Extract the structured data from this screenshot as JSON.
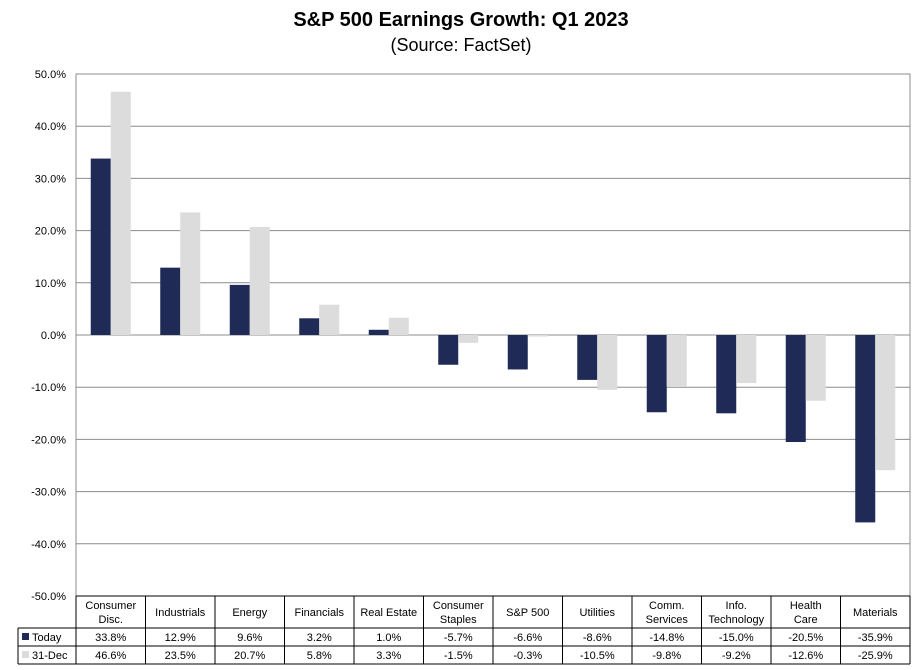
{
  "chart_data": {
    "type": "bar",
    "title": "S&P 500 Earnings Growth: Q1 2023",
    "subtitle": "(Source: FactSet)",
    "categories": [
      [
        "Consumer",
        "Disc."
      ],
      [
        "Industrials"
      ],
      [
        "Energy"
      ],
      [
        "Financials"
      ],
      [
        "Real Estate"
      ],
      [
        "Consumer",
        "Staples"
      ],
      [
        "S&P 500"
      ],
      [
        "Utilities"
      ],
      [
        "Comm.",
        "Services"
      ],
      [
        "Info.",
        "Technology"
      ],
      [
        "Health",
        "Care"
      ],
      [
        "Materials"
      ]
    ],
    "series": [
      {
        "name": "Today",
        "color": "#1f2a57",
        "values": [
          33.8,
          12.9,
          9.6,
          3.2,
          1.0,
          -5.7,
          -6.6,
          -8.6,
          -14.8,
          -15.0,
          -20.5,
          -35.9
        ],
        "labels": [
          "33.8%",
          "12.9%",
          "9.6%",
          "3.2%",
          "1.0%",
          "-5.7%",
          "-6.6%",
          "-8.6%",
          "-14.8%",
          "-15.0%",
          "-20.5%",
          "-35.9%"
        ]
      },
      {
        "name": "31-Dec",
        "color": "#dcdcdc",
        "values": [
          46.6,
          23.5,
          20.7,
          5.8,
          3.3,
          -1.5,
          -0.3,
          -10.5,
          -9.8,
          -9.2,
          -12.6,
          -25.9
        ],
        "labels": [
          "46.6%",
          "23.5%",
          "20.7%",
          "5.8%",
          "3.3%",
          "-1.5%",
          "-0.3%",
          "-10.5%",
          "-9.8%",
          "-9.2%",
          "-12.6%",
          "-25.9%"
        ]
      }
    ],
    "ylim": [
      -50,
      50
    ],
    "yticks": [
      50,
      40,
      30,
      20,
      10,
      0,
      -10,
      -20,
      -30,
      -40,
      -50
    ],
    "ytick_labels": [
      "50.0%",
      "40.0%",
      "30.0%",
      "20.0%",
      "10.0%",
      "0.0%",
      "-10.0%",
      "-20.0%",
      "-30.0%",
      "-40.0%",
      "-50.0%"
    ],
    "grid": true,
    "legend": "data table below chart"
  }
}
